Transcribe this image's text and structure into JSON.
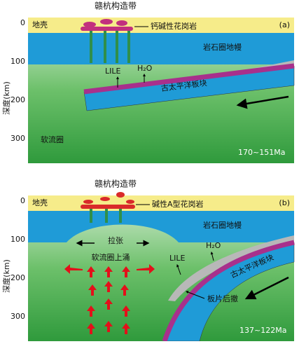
{
  "panels": [
    {
      "belt": "赣杭构造带",
      "crust": "地壳",
      "granite": "钙碱性花岗岩",
      "label": "(a)",
      "mantle": "岩石圈地幔",
      "lile": "LILE",
      "h2o": "H₂O",
      "plate": "古太平洋板块",
      "asthenosphere": "软流圈",
      "age": "170~151Ma",
      "axis_title": "深度(km)",
      "ticks": [
        "0",
        "100",
        "200",
        "300"
      ]
    },
    {
      "belt": "赣杭构造带",
      "crust": "地壳",
      "granite": "碱性A型花岗岩",
      "label": "(b)",
      "mantle": "岩石圈地幔",
      "extension": "拉张",
      "upwelling": "软流圈上涌",
      "lile": "LILE",
      "h2o": "H₂O",
      "plate": "古太平洋板块",
      "rollback": "板片后撤",
      "age": "137~122Ma",
      "axis_title": "深度(km)",
      "ticks": [
        "0",
        "100",
        "200",
        "300"
      ]
    }
  ]
}
